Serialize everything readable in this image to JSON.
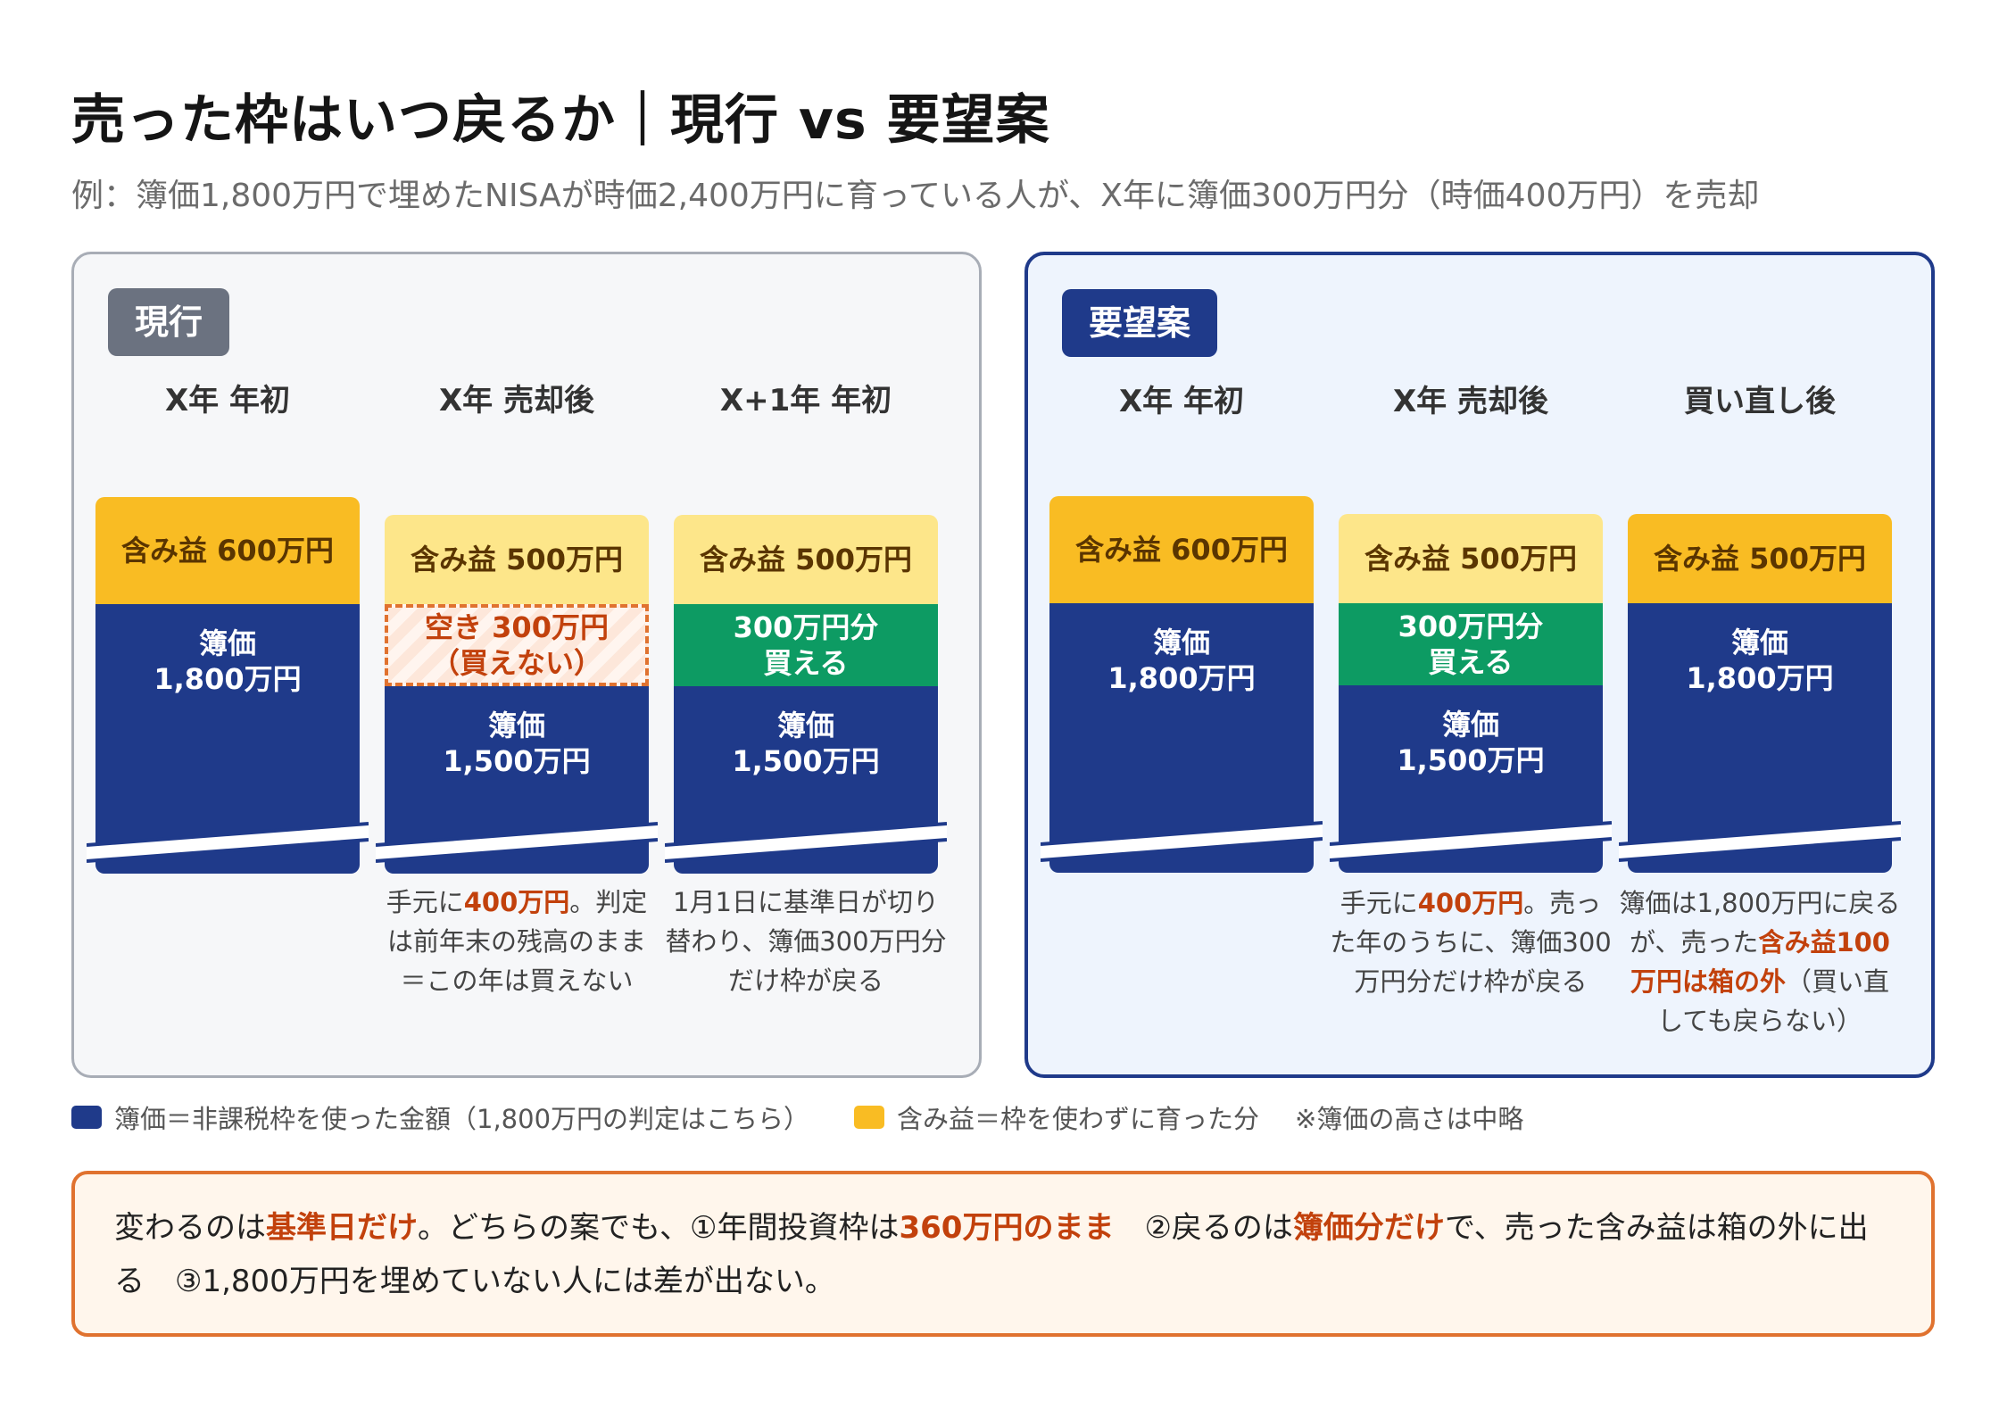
{
  "title": "売った枠はいつ戻るか｜現行 vs 要望案",
  "subtitle": "例：簿価1,800万円で埋めたNISAが時価2,400万円に育っている人が、X年に簿価300万円分（時価400万円）を売却",
  "colors": {
    "book": "#1f3a8a",
    "gain": "#f9bc23",
    "gain_light": "#fde68a",
    "free": "#0d9b63",
    "accent": "#c2410c"
  },
  "panels": {
    "current": {
      "badge": "現行",
      "columns": [
        {
          "header": "X年 年初",
          "gain": "含み益 600万円",
          "book": "簿価\n1,800万円"
        },
        {
          "header": "X年 売却後",
          "gain": "含み益 500万円",
          "empty": "空き 300万円\n（買えない）",
          "book": "簿価\n1,500万円",
          "note": {
            "pre": "手元に",
            "hl": "400万円",
            "post": "。判定は前年末の残高のまま＝この年は買えない"
          }
        },
        {
          "header": "X+1年 年初",
          "gain": "含み益 500万円",
          "free": "300万円分\n買える",
          "book": "簿価\n1,500万円",
          "note": {
            "pre": "1月1日に基準日が切り替わり、簿価300万円分だけ枠が戻る"
          }
        }
      ]
    },
    "proposal": {
      "badge": "要望案",
      "columns": [
        {
          "header": "X年 年初",
          "gain": "含み益 600万円",
          "book": "簿価\n1,800万円"
        },
        {
          "header": "X年 売却後",
          "gain": "含み益 500万円",
          "free": "300万円分\n買える",
          "book": "簿価\n1,500万円",
          "note": {
            "pre": "手元に",
            "hl": "400万円",
            "post": "。売った年のうちに、簿価300万円分だけ枠が戻る"
          }
        },
        {
          "header": "買い直し後",
          "gain": "含み益 500万円",
          "book": "簿価\n1,800万円",
          "note": {
            "pre": "簿価は1,800万円に戻るが、売った",
            "hl": "含み益100万円は箱の外",
            "post": "（買い直しても戻らない）"
          }
        }
      ]
    }
  },
  "legend": {
    "book": "簿価＝非課税枠を使った金額（1,800万円の判定はこちら）",
    "gain": "含み益＝枠を使わずに育った分",
    "note": "※簿価の高さは中略"
  },
  "callout": {
    "t1": "変わるのは",
    "h1": "基準日だけ",
    "t2": "。どちらの案でも、①年間投資枠は",
    "h2": "360万円のまま",
    "t3": "　②戻るのは",
    "h3": "簿価分だけ",
    "t4": "で、売った含み益は箱の外に出る　③1,800万円を埋めていない人には差が出ない。"
  }
}
